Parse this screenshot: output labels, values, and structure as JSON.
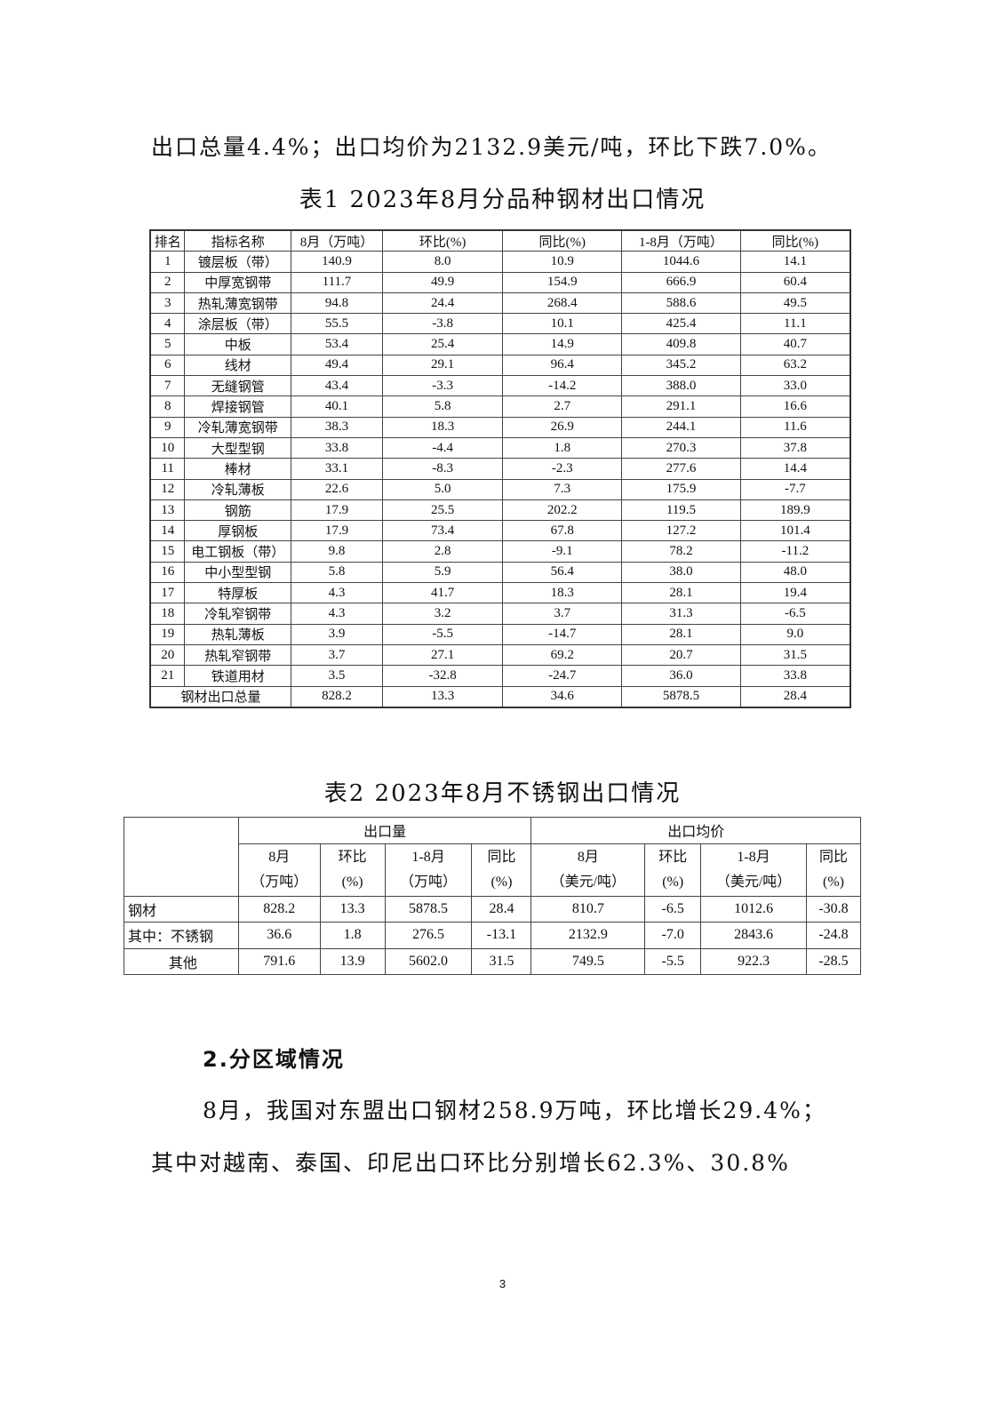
{
  "intro_line": "出口总量4.4%；出口均价为2132.9美元/吨，环比下跌7.0%。",
  "table1": {
    "caption": "表1 2023年8月分品种钢材出口情况",
    "headers": [
      "排名",
      "指标名称",
      "8月（万吨）",
      "环比(%)",
      "同比(%)",
      "1-8月（万吨）",
      "同比(%)"
    ],
    "rows": [
      [
        "1",
        "镀层板（带）",
        "140.9",
        "8.0",
        "10.9",
        "1044.6",
        "14.1"
      ],
      [
        "2",
        "中厚宽钢带",
        "111.7",
        "49.9",
        "154.9",
        "666.9",
        "60.4"
      ],
      [
        "3",
        "热轧薄宽钢带",
        "94.8",
        "24.4",
        "268.4",
        "588.6",
        "49.5"
      ],
      [
        "4",
        "涂层板（带）",
        "55.5",
        "-3.8",
        "10.1",
        "425.4",
        "11.1"
      ],
      [
        "5",
        "中板",
        "53.4",
        "25.4",
        "14.9",
        "409.8",
        "40.7"
      ],
      [
        "6",
        "线材",
        "49.4",
        "29.1",
        "96.4",
        "345.2",
        "63.2"
      ],
      [
        "7",
        "无缝钢管",
        "43.4",
        "-3.3",
        "-14.2",
        "388.0",
        "33.0"
      ],
      [
        "8",
        "焊接钢管",
        "40.1",
        "5.8",
        "2.7",
        "291.1",
        "16.6"
      ],
      [
        "9",
        "冷轧薄宽钢带",
        "38.3",
        "18.3",
        "26.9",
        "244.1",
        "11.6"
      ],
      [
        "10",
        "大型型钢",
        "33.8",
        "-4.4",
        "1.8",
        "270.3",
        "37.8"
      ],
      [
        "11",
        "棒材",
        "33.1",
        "-8.3",
        "-2.3",
        "277.6",
        "14.4"
      ],
      [
        "12",
        "冷轧薄板",
        "22.6",
        "5.0",
        "7.3",
        "175.9",
        "-7.7"
      ],
      [
        "13",
        "钢筋",
        "17.9",
        "25.5",
        "202.2",
        "119.5",
        "189.9"
      ],
      [
        "14",
        "厚钢板",
        "17.9",
        "73.4",
        "67.8",
        "127.2",
        "101.4"
      ],
      [
        "15",
        "电工钢板（带）",
        "9.8",
        "2.8",
        "-9.1",
        "78.2",
        "-11.2"
      ],
      [
        "16",
        "中小型型钢",
        "5.8",
        "5.9",
        "56.4",
        "38.0",
        "48.0"
      ],
      [
        "17",
        "特厚板",
        "4.3",
        "41.7",
        "18.3",
        "28.1",
        "19.4"
      ],
      [
        "18",
        "冷轧窄钢带",
        "4.3",
        "3.2",
        "3.7",
        "31.3",
        "-6.5"
      ],
      [
        "19",
        "热轧薄板",
        "3.9",
        "-5.5",
        "-14.7",
        "28.1",
        "9.0"
      ],
      [
        "20",
        "热轧窄钢带",
        "3.7",
        "27.1",
        "69.2",
        "20.7",
        "31.5"
      ],
      [
        "21",
        "铁道用材",
        "3.5",
        "-32.8",
        "-24.7",
        "36.0",
        "33.8"
      ]
    ],
    "total": [
      "钢材出口总量",
      "828.2",
      "13.3",
      "34.6",
      "5878.5",
      "28.4"
    ]
  },
  "table2": {
    "caption": "表2 2023年8月不锈钢出口情况",
    "group_headers": [
      "出口量",
      "出口均价"
    ],
    "sub_headers": [
      [
        "8月",
        "（万吨）"
      ],
      [
        "环比",
        "(%)"
      ],
      [
        "1-8月",
        "（万吨）"
      ],
      [
        "同比",
        "(%)"
      ],
      [
        "8月",
        "（美元/吨）"
      ],
      [
        "环比",
        "(%)"
      ],
      [
        "1-8月",
        "（美元/吨）"
      ],
      [
        "同比",
        "(%)"
      ]
    ],
    "rows": [
      [
        "钢材",
        "828.2",
        "13.3",
        "5878.5",
        "28.4",
        "810.7",
        "-6.5",
        "1012.6",
        "-30.8"
      ],
      [
        "其中：不锈钢",
        "36.6",
        "1.8",
        "276.5",
        "-13.1",
        "2132.9",
        "-7.0",
        "2843.6",
        "-24.8"
      ],
      [
        "其他",
        "791.6",
        "13.9",
        "5602.0",
        "31.5",
        "749.5",
        "-5.5",
        "922.3",
        "-28.5"
      ]
    ]
  },
  "section_heading": "2.分区域情况",
  "para1": "8月，我国对东盟出口钢材258.9万吨，环比增长29.4%；",
  "para2": "其中对越南、泰国、印尼出口环比分别增长62.3%、30.8%",
  "page_number": "3"
}
